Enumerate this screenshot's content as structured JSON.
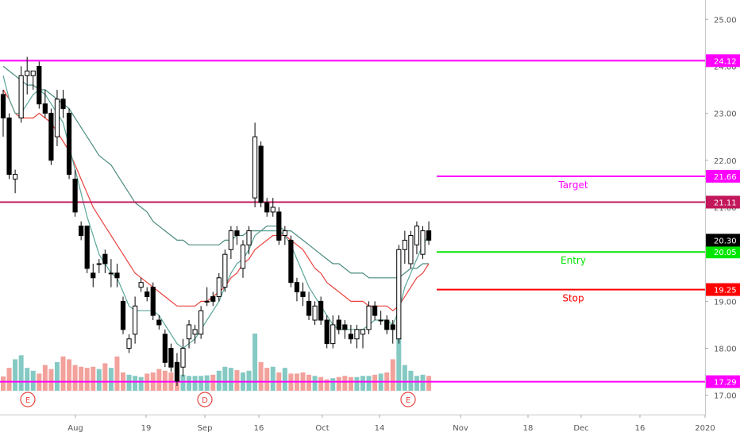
{
  "chart_data": {
    "type": "candlestick",
    "y_axis": {
      "ticks": [
        "25.00",
        "24.00",
        "23.00",
        "22.00",
        "21.00",
        "20.00",
        "19.00",
        "18.00",
        "17.00"
      ],
      "tick_values": [
        25,
        24,
        23,
        22,
        21,
        20,
        19,
        18,
        17
      ],
      "range": [
        16.59,
        25.41
      ]
    },
    "x_axis": {
      "ticks": [
        "Aug",
        "19",
        "Sep",
        "16",
        "Oct",
        "14",
        "Nov",
        "18",
        "Dec",
        "16",
        "2020"
      ]
    },
    "levels": [
      {
        "name": "resistance",
        "value": 24.12,
        "label": "24.12",
        "color": "#ff00ff",
        "text": "",
        "full_width": true
      },
      {
        "name": "target",
        "value": 21.66,
        "label": "21.66",
        "color": "#ff00ff",
        "text": "Target",
        "full_width": false
      },
      {
        "name": "support",
        "value": 21.11,
        "label": "21.11",
        "color": "#c2185b",
        "text": "",
        "full_width": true
      },
      {
        "name": "entry",
        "value": 20.05,
        "label": "20.05",
        "color": "#00e600",
        "text": "Entry",
        "full_width": false
      },
      {
        "name": "stop",
        "value": 19.25,
        "label": "19.25",
        "color": "#ff0000",
        "text": "Stop",
        "full_width": false
      },
      {
        "name": "bottom",
        "value": 17.29,
        "label": "17.29",
        "color": "#ff00ff",
        "text": "",
        "full_width": true
      }
    ],
    "last_price": {
      "value": 20.3,
      "label": "20.30"
    },
    "events": [
      "E",
      "D",
      "E"
    ],
    "candles": [
      {
        "o": 23.4,
        "h": 23.5,
        "l": 22.5,
        "c": 22.9
      },
      {
        "o": 22.9,
        "h": 23.0,
        "l": 21.6,
        "c": 21.7
      },
      {
        "o": 21.6,
        "h": 21.8,
        "l": 21.3,
        "c": 21.7
      },
      {
        "o": 22.9,
        "h": 24.0,
        "l": 22.8,
        "c": 23.8
      },
      {
        "o": 23.8,
        "h": 24.2,
        "l": 23.4,
        "c": 23.9
      },
      {
        "o": 23.8,
        "h": 23.9,
        "l": 23.5,
        "c": 23.9
      },
      {
        "o": 24.0,
        "h": 24.1,
        "l": 23.1,
        "c": 23.2
      },
      {
        "o": 23.2,
        "h": 23.5,
        "l": 22.9,
        "c": 23.0
      },
      {
        "o": 23.0,
        "h": 23.1,
        "l": 21.9,
        "c": 22.0
      },
      {
        "o": 22.5,
        "h": 23.5,
        "l": 22.3,
        "c": 23.3
      },
      {
        "o": 23.3,
        "h": 23.5,
        "l": 22.9,
        "c": 23.1
      },
      {
        "o": 23.0,
        "h": 23.1,
        "l": 21.6,
        "c": 21.7
      },
      {
        "o": 21.6,
        "h": 21.8,
        "l": 20.8,
        "c": 20.9
      },
      {
        "o": 20.6,
        "h": 20.7,
        "l": 20.3,
        "c": 20.4
      },
      {
        "o": 20.6,
        "h": 20.6,
        "l": 19.6,
        "c": 19.7
      },
      {
        "o": 19.6,
        "h": 19.8,
        "l": 19.3,
        "c": 19.5
      },
      {
        "o": 19.8,
        "h": 19.9,
        "l": 19.6,
        "c": 19.8
      },
      {
        "o": 20.0,
        "h": 20.1,
        "l": 19.6,
        "c": 19.8
      },
      {
        "o": 19.6,
        "h": 19.9,
        "l": 19.3,
        "c": 19.6
      },
      {
        "o": 19.6,
        "h": 19.8,
        "l": 19.3,
        "c": 19.5
      },
      {
        "o": 19.0,
        "h": 19.1,
        "l": 18.3,
        "c": 18.4
      },
      {
        "o": 18.0,
        "h": 18.3,
        "l": 17.9,
        "c": 18.2
      },
      {
        "o": 18.3,
        "h": 19.1,
        "l": 18.1,
        "c": 18.9
      },
      {
        "o": 19.3,
        "h": 19.5,
        "l": 19.2,
        "c": 19.4
      },
      {
        "o": 19.2,
        "h": 19.3,
        "l": 19.0,
        "c": 19.1
      },
      {
        "o": 19.3,
        "h": 19.4,
        "l": 18.6,
        "c": 18.7
      },
      {
        "o": 18.6,
        "h": 18.7,
        "l": 18.4,
        "c": 18.5
      },
      {
        "o": 18.3,
        "h": 18.4,
        "l": 17.6,
        "c": 17.7
      },
      {
        "o": 18.0,
        "h": 18.1,
        "l": 17.5,
        "c": 17.6
      },
      {
        "o": 17.7,
        "h": 17.9,
        "l": 17.2,
        "c": 17.3
      },
      {
        "o": 17.6,
        "h": 18.2,
        "l": 17.4,
        "c": 18.0
      },
      {
        "o": 18.2,
        "h": 18.6,
        "l": 18.0,
        "c": 18.5
      },
      {
        "o": 18.3,
        "h": 18.5,
        "l": 18.1,
        "c": 18.4
      },
      {
        "o": 18.3,
        "h": 18.9,
        "l": 18.2,
        "c": 18.8
      },
      {
        "o": 19.0,
        "h": 19.3,
        "l": 18.9,
        "c": 19.0
      },
      {
        "o": 19.1,
        "h": 19.2,
        "l": 18.9,
        "c": 19.0
      },
      {
        "o": 19.1,
        "h": 19.6,
        "l": 19.0,
        "c": 19.5
      },
      {
        "o": 19.3,
        "h": 20.1,
        "l": 19.2,
        "c": 20.0
      },
      {
        "o": 20.1,
        "h": 20.6,
        "l": 19.9,
        "c": 20.5
      },
      {
        "o": 20.5,
        "h": 20.6,
        "l": 20.2,
        "c": 20.4
      },
      {
        "o": 19.7,
        "h": 20.3,
        "l": 19.5,
        "c": 20.2
      },
      {
        "o": 20.2,
        "h": 20.6,
        "l": 20.0,
        "c": 20.5
      },
      {
        "o": 21.2,
        "h": 22.8,
        "l": 21.0,
        "c": 22.5
      },
      {
        "o": 22.3,
        "h": 22.4,
        "l": 21.0,
        "c": 21.1
      },
      {
        "o": 21.1,
        "h": 21.2,
        "l": 20.8,
        "c": 20.9
      },
      {
        "o": 20.9,
        "h": 21.2,
        "l": 20.8,
        "c": 21.0
      },
      {
        "o": 20.9,
        "h": 21.0,
        "l": 20.2,
        "c": 20.3
      },
      {
        "o": 20.4,
        "h": 20.6,
        "l": 20.2,
        "c": 20.5
      },
      {
        "o": 20.3,
        "h": 20.4,
        "l": 19.3,
        "c": 19.4
      },
      {
        "o": 19.4,
        "h": 19.5,
        "l": 19.0,
        "c": 19.2
      },
      {
        "o": 19.2,
        "h": 19.4,
        "l": 18.9,
        "c": 19.1
      },
      {
        "o": 19.0,
        "h": 19.2,
        "l": 18.6,
        "c": 18.7
      },
      {
        "o": 18.6,
        "h": 19.0,
        "l": 18.5,
        "c": 18.9
      },
      {
        "o": 19.0,
        "h": 19.1,
        "l": 18.5,
        "c": 18.6
      },
      {
        "o": 18.6,
        "h": 18.7,
        "l": 18.0,
        "c": 18.1
      },
      {
        "o": 18.1,
        "h": 18.7,
        "l": 18.0,
        "c": 18.5
      },
      {
        "o": 18.6,
        "h": 18.7,
        "l": 18.3,
        "c": 18.4
      },
      {
        "o": 18.5,
        "h": 18.6,
        "l": 18.2,
        "c": 18.4
      },
      {
        "o": 18.3,
        "h": 18.5,
        "l": 18.1,
        "c": 18.2
      },
      {
        "o": 18.2,
        "h": 18.5,
        "l": 18.0,
        "c": 18.4
      },
      {
        "o": 18.3,
        "h": 18.4,
        "l": 18.0,
        "c": 18.4
      },
      {
        "o": 18.4,
        "h": 19.0,
        "l": 18.3,
        "c": 18.9
      },
      {
        "o": 18.9,
        "h": 19.0,
        "l": 18.6,
        "c": 18.7
      },
      {
        "o": 18.6,
        "h": 18.8,
        "l": 18.5,
        "c": 18.6
      },
      {
        "o": 18.6,
        "h": 18.7,
        "l": 18.3,
        "c": 18.4
      },
      {
        "o": 18.5,
        "h": 18.6,
        "l": 18.1,
        "c": 18.4
      },
      {
        "o": 18.2,
        "h": 20.2,
        "l": 18.1,
        "c": 20.1
      },
      {
        "o": 20.1,
        "h": 20.5,
        "l": 19.8,
        "c": 20.3
      },
      {
        "o": 19.8,
        "h": 20.5,
        "l": 19.7,
        "c": 20.4
      },
      {
        "o": 20.2,
        "h": 20.7,
        "l": 20.0,
        "c": 20.6
      },
      {
        "o": 20.0,
        "h": 20.6,
        "l": 19.9,
        "c": 20.5
      },
      {
        "o": 20.5,
        "h": 20.7,
        "l": 20.2,
        "c": 20.3
      }
    ],
    "ma_fast": [
      23.8,
      23.3,
      23.0,
      23.0,
      23.2,
      23.4,
      23.5,
      23.4,
      23.2,
      23.0,
      22.8,
      22.3,
      21.8,
      21.3,
      20.8,
      20.4,
      20.0,
      19.8,
      19.6,
      19.5,
      19.2,
      18.9,
      18.8,
      18.8,
      18.8,
      18.8,
      18.7,
      18.5,
      18.3,
      18.1,
      18.0,
      18.1,
      18.2,
      18.4,
      18.6,
      18.8,
      19.0,
      19.3,
      19.6,
      19.8,
      19.9,
      20.1,
      20.4,
      20.5,
      20.5,
      20.5,
      20.5,
      20.4,
      20.2,
      19.9,
      19.6,
      19.3,
      19.1,
      18.9,
      18.7,
      18.5,
      18.4,
      18.4,
      18.4,
      18.4,
      18.4,
      18.5,
      18.6,
      18.6,
      18.6,
      18.5,
      18.8,
      19.3,
      19.6,
      19.9,
      20.2,
      20.4
    ],
    "ma_mid": [
      23.5,
      23.3,
      23.0,
      22.9,
      22.9,
      22.9,
      23.0,
      22.9,
      22.8,
      22.6,
      22.4,
      22.2,
      21.9,
      21.6,
      21.3,
      21.0,
      20.8,
      20.6,
      20.4,
      20.2,
      20.0,
      19.8,
      19.6,
      19.5,
      19.4,
      19.3,
      19.2,
      19.1,
      19.0,
      18.9,
      18.9,
      18.9,
      18.9,
      19.0,
      19.0,
      19.1,
      19.2,
      19.3,
      19.5,
      19.6,
      19.8,
      19.9,
      20.1,
      20.2,
      20.3,
      20.4,
      20.4,
      20.4,
      20.3,
      20.2,
      20.1,
      19.9,
      19.7,
      19.6,
      19.4,
      19.3,
      19.2,
      19.1,
      19.0,
      19.0,
      19.0,
      18.9,
      18.9,
      18.9,
      18.9,
      18.8,
      18.9,
      19.1,
      19.3,
      19.5,
      19.6,
      19.8
    ],
    "ma_slow": [
      24.0,
      23.9,
      23.8,
      23.7,
      23.6,
      23.6,
      23.5,
      23.5,
      23.4,
      23.3,
      23.2,
      23.1,
      22.9,
      22.7,
      22.5,
      22.3,
      22.1,
      22.0,
      21.9,
      21.7,
      21.5,
      21.3,
      21.1,
      21.0,
      20.9,
      20.7,
      20.6,
      20.5,
      20.4,
      20.3,
      20.3,
      20.2,
      20.2,
      20.2,
      20.2,
      20.2,
      20.2,
      20.3,
      20.3,
      20.4,
      20.4,
      20.5,
      20.5,
      20.5,
      20.6,
      20.6,
      20.6,
      20.5,
      20.5,
      20.4,
      20.3,
      20.2,
      20.1,
      20.0,
      19.9,
      19.8,
      19.8,
      19.7,
      19.6,
      19.6,
      19.6,
      19.5,
      19.5,
      19.5,
      19.5,
      19.5,
      19.5,
      19.6,
      19.7,
      19.7,
      19.8,
      19.8
    ],
    "volume": [
      0.25,
      0.4,
      0.55,
      0.62,
      0.4,
      0.35,
      0.3,
      0.45,
      0.38,
      0.5,
      0.6,
      0.55,
      0.45,
      0.42,
      0.4,
      0.42,
      0.38,
      0.48,
      0.4,
      0.6,
      0.32,
      0.28,
      0.26,
      0.24,
      0.3,
      0.32,
      0.38,
      0.35,
      0.32,
      0.3,
      0.28,
      0.26,
      0.26,
      0.26,
      0.27,
      0.28,
      0.35,
      0.42,
      0.4,
      0.36,
      0.32,
      0.35,
      1.0,
      0.5,
      0.4,
      0.42,
      0.32,
      0.4,
      0.3,
      0.3,
      0.32,
      0.28,
      0.26,
      0.24,
      0.2,
      0.22,
      0.24,
      0.26,
      0.24,
      0.24,
      0.26,
      0.26,
      0.28,
      0.3,
      0.32,
      0.55,
      0.92,
      0.45,
      0.35,
      0.26,
      0.28,
      0.26
    ],
    "volume_colors_up": "#85c9c3",
    "volume_colors_down": "#f2a19b"
  }
}
